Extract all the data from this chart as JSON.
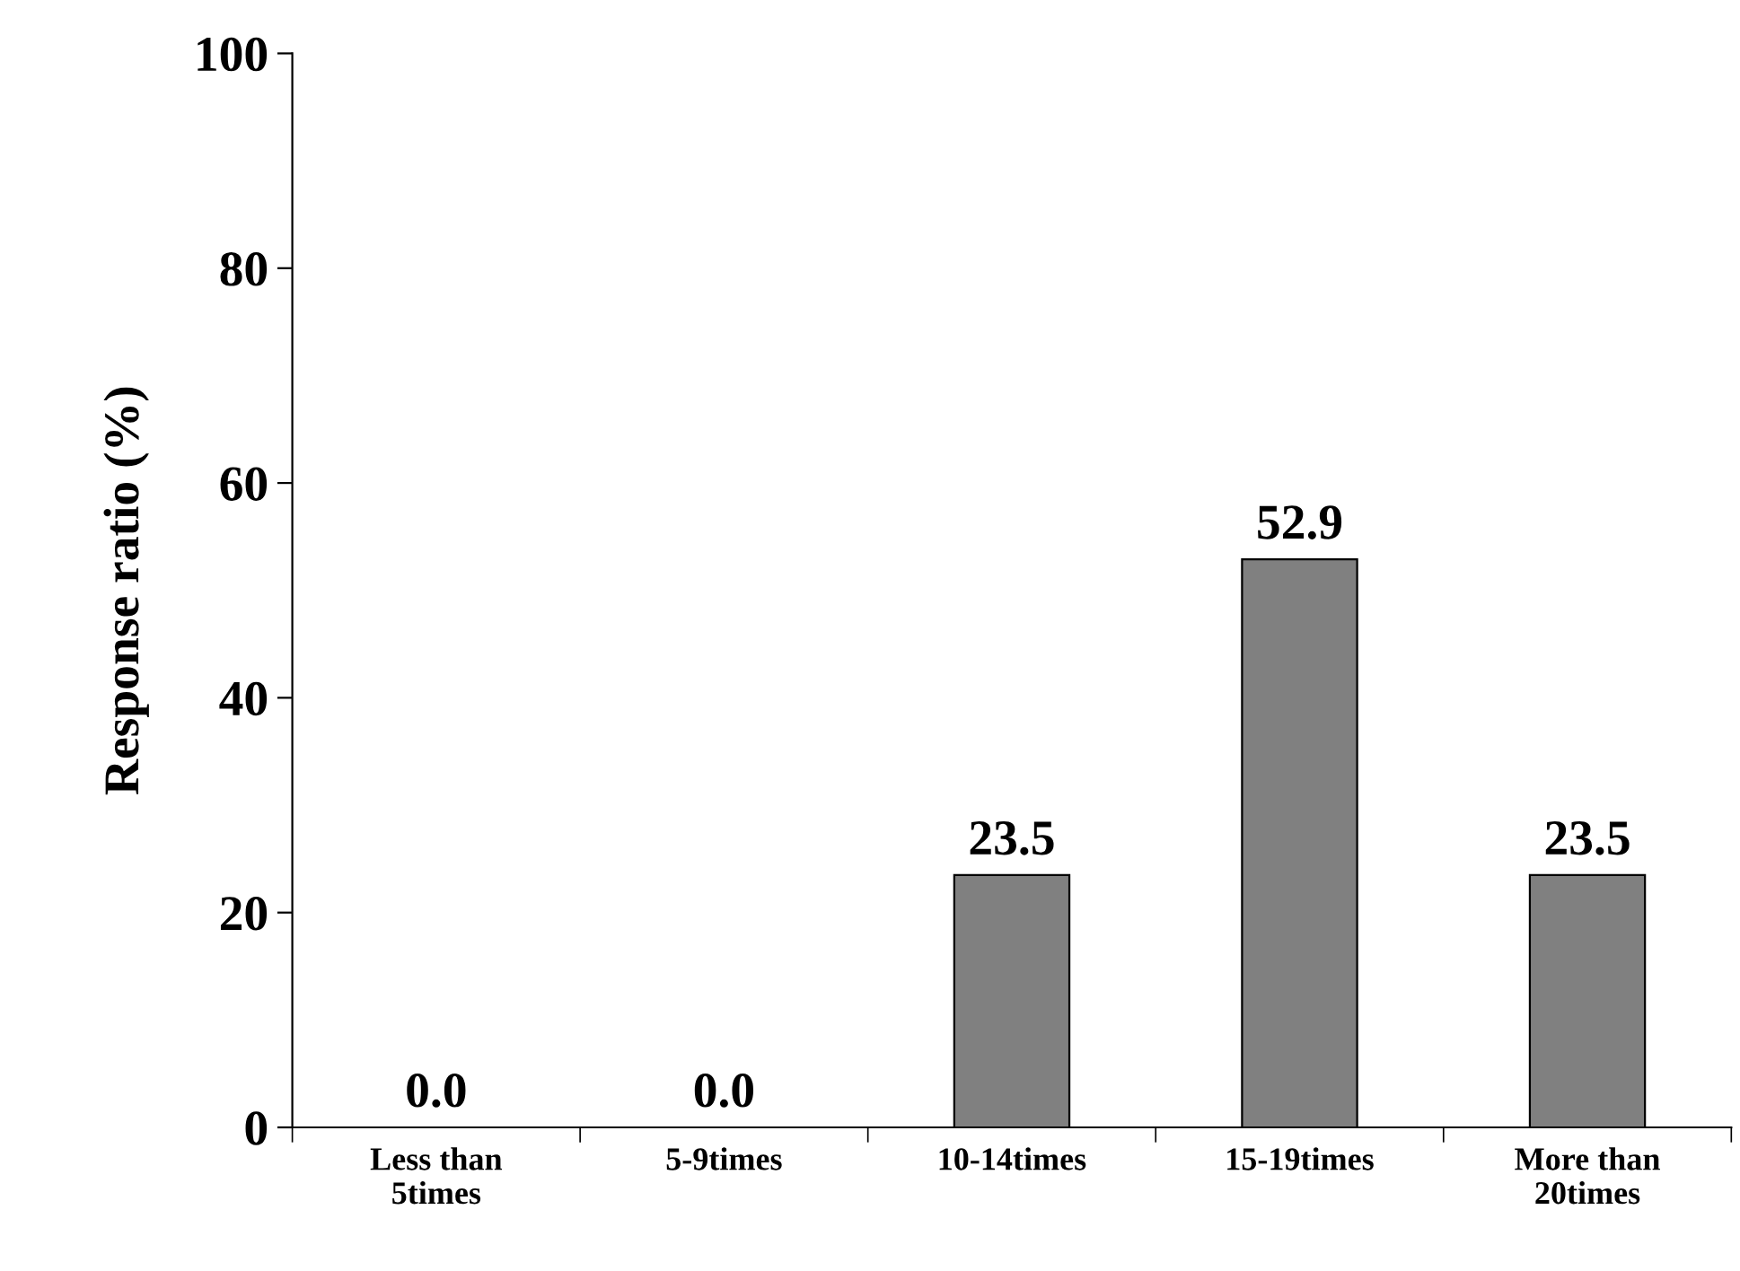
{
  "chart_data": {
    "type": "bar",
    "ylabel": "Response ratio (%)",
    "categories": [
      "Less than\n5times",
      "5-9times",
      "10-14times",
      "15-19times",
      "More than\n20times"
    ],
    "values": [
      0.0,
      0.0,
      23.5,
      52.9,
      23.5
    ],
    "value_labels": [
      "0.0",
      "0.0",
      "23.5",
      "52.9",
      "23.5"
    ],
    "color": "#808080",
    "ylim": [
      0,
      100
    ],
    "yticks": [
      0,
      20,
      40,
      60,
      80,
      100
    ],
    "grid": false,
    "legend": false
  }
}
